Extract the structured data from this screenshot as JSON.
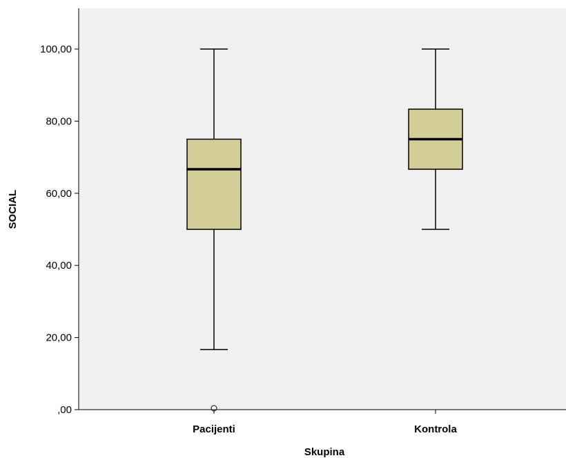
{
  "chart_data": {
    "type": "boxplot",
    "xlabel": "Skupina",
    "ylabel": "SOCIAL",
    "ylim": [
      0,
      110
    ],
    "yticks": [
      0,
      20,
      40,
      60,
      80,
      100
    ],
    "ytick_labels": [
      ",00",
      "20,00",
      "40,00",
      "60,00",
      "80,00",
      "100,00"
    ],
    "categories": [
      "Pacijenti",
      "Kontrola"
    ],
    "boxes": [
      {
        "category": "Pacijenti",
        "whisker_low": 16.67,
        "q1": 50,
        "median": 66.67,
        "q3": 75,
        "whisker_high": 100,
        "outliers": [
          0
        ]
      },
      {
        "category": "Kontrola",
        "whisker_low": 50,
        "q1": 66.67,
        "median": 75,
        "q3": 83.33,
        "whisker_high": 100,
        "outliers": []
      }
    ],
    "plot_background": "#f0f0f0",
    "box_fill": "#d3ce97",
    "grid": false
  }
}
